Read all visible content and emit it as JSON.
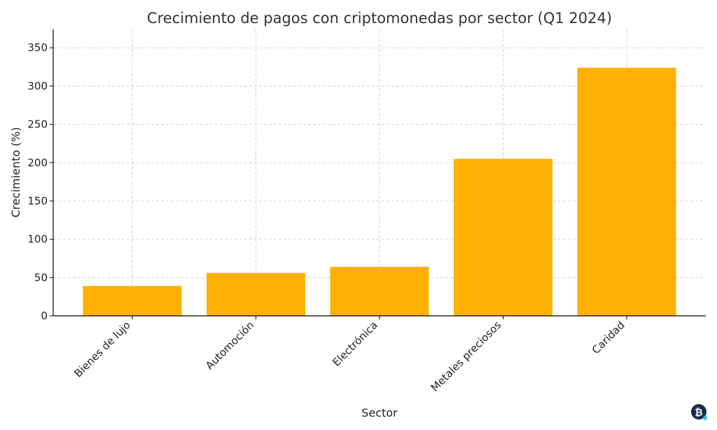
{
  "chart_data": {
    "type": "bar",
    "title": "Crecimiento de pagos con criptomonedas por sector (Q1 2024)",
    "xlabel": "Sector",
    "ylabel": "Crecimiento (%)",
    "categories": [
      "Bienes de lujo",
      "Automoción",
      "Electrónica",
      "Metales preciosos",
      "Caridad"
    ],
    "values": [
      39,
      56,
      64,
      205,
      324
    ],
    "ylim": [
      0,
      374
    ],
    "yticks": [
      0,
      50,
      100,
      150,
      200,
      250,
      300,
      350
    ],
    "grid": true,
    "colors": {
      "bar": "#ffb000"
    }
  },
  "logo": {
    "icon": "bitcoin-icon",
    "text": "₿",
    "colors": {
      "circle": "#1b2a4a",
      "dot": "#2ec5d3"
    }
  }
}
